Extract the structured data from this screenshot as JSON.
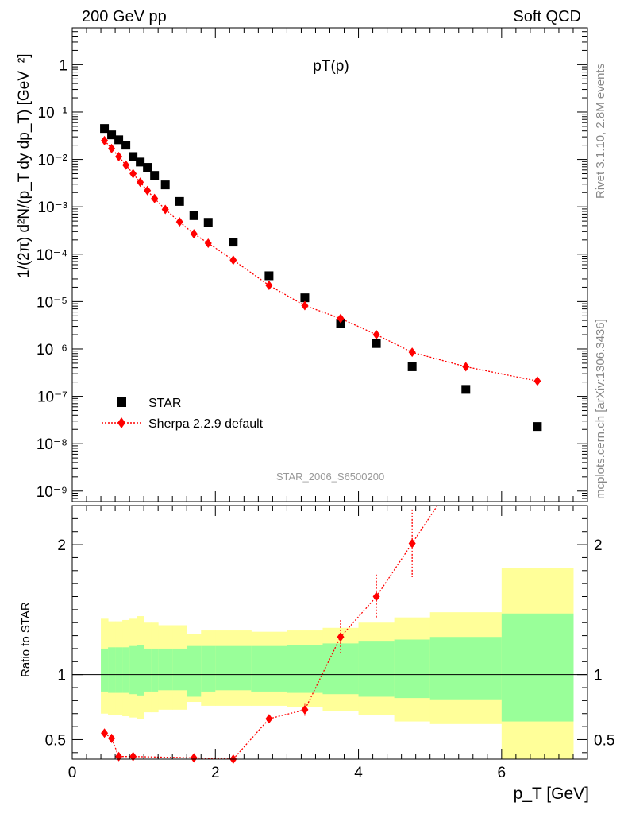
{
  "header": {
    "left_label": "200 GeV pp",
    "right_label": "Soft QCD"
  },
  "side_labels": {
    "rivet": "Rivet 3.1.10,  2.8M events",
    "source": "mcplots.cern.ch [arXiv:1306.3436]"
  },
  "chart_data": [
    {
      "type": "scatter",
      "title": "pT(p)",
      "watermark": "STAR_2006_S6500200",
      "ylabel": "1/(2π) d²N/(p_T dy dp_T) [GeV⁻²]",
      "yscale": "log",
      "ylim": [
        6e-10,
        6
      ],
      "xlim": [
        0,
        7.2
      ],
      "ytick_labels": [
        "10⁻⁹",
        "10⁻⁸",
        "10⁻⁷",
        "10⁻⁶",
        "10⁻⁵",
        "10⁻⁴",
        "10⁻³",
        "10⁻²",
        "10⁻¹",
        "1"
      ],
      "legend_position": "bottom-left",
      "colors": {
        "data": "#000000",
        "mc": "#ff0000"
      },
      "series": [
        {
          "name": "STAR",
          "marker": "square",
          "x": [
            0.45,
            0.55,
            0.65,
            0.75,
            0.85,
            0.95,
            1.05,
            1.15,
            1.3,
            1.5,
            1.7,
            1.9,
            2.25,
            2.75,
            3.25,
            3.75,
            4.25,
            4.75,
            5.5,
            6.5
          ],
          "y": [
            0.045,
            0.033,
            0.026,
            0.02,
            0.0115,
            0.0088,
            0.0068,
            0.0046,
            0.0029,
            0.0013,
            0.00065,
            0.00047,
            0.00018,
            3.5e-05,
            1.2e-05,
            3.5e-06,
            1.3e-06,
            4.2e-07,
            1.4e-07,
            2.3e-08
          ]
        },
        {
          "name": "Sherpa 2.2.9 default",
          "marker": "diamond",
          "line": "dotted",
          "x": [
            0.45,
            0.55,
            0.65,
            0.75,
            0.85,
            0.95,
            1.05,
            1.15,
            1.3,
            1.5,
            1.7,
            1.9,
            2.25,
            2.75,
            3.25,
            3.75,
            4.25,
            4.75,
            5.5,
            6.5
          ],
          "y": [
            0.025,
            0.017,
            0.0115,
            0.0076,
            0.005,
            0.0033,
            0.0022,
            0.0015,
            0.00088,
            0.00048,
            0.00027,
            0.00017,
            7.5e-05,
            2.2e-05,
            8.2e-06,
            4.4e-06,
            2e-06,
            8.5e-07,
            4.2e-07,
            2.1e-07
          ]
        }
      ]
    },
    {
      "type": "line",
      "ylabel": "Ratio to STAR",
      "xlabel": "p_T [GeV]",
      "xlim": [
        0,
        7.2
      ],
      "ylim": [
        0.35,
        2.3
      ],
      "xticks": [
        0,
        2,
        4,
        6
      ],
      "yticks": [
        0.5,
        1,
        2
      ],
      "reference_line": 1,
      "colors": {
        "band_outer": "#ffff99",
        "band_inner": "#99ff99",
        "mc": "#ff0000",
        "reference": "#000000"
      },
      "bands": {
        "edges": [
          0.4,
          0.5,
          0.6,
          0.7,
          0.8,
          0.9,
          1.0,
          1.1,
          1.2,
          1.4,
          1.6,
          1.8,
          2.0,
          2.5,
          3.0,
          3.5,
          4.0,
          4.5,
          5.0,
          6.0,
          7.0
        ],
        "outer_lo": [
          0.7,
          0.69,
          0.69,
          0.68,
          0.67,
          0.66,
          0.71,
          0.71,
          0.73,
          0.73,
          0.79,
          0.76,
          0.76,
          0.76,
          0.75,
          0.72,
          0.69,
          0.64,
          0.62,
          0.34
        ],
        "outer_hi": [
          1.43,
          1.41,
          1.41,
          1.42,
          1.43,
          1.45,
          1.4,
          1.4,
          1.38,
          1.38,
          1.31,
          1.34,
          1.34,
          1.33,
          1.34,
          1.36,
          1.4,
          1.44,
          1.48,
          1.82
        ],
        "inner_lo": [
          0.87,
          0.86,
          0.86,
          0.86,
          0.85,
          0.84,
          0.87,
          0.87,
          0.88,
          0.88,
          0.83,
          0.87,
          0.88,
          0.87,
          0.86,
          0.85,
          0.83,
          0.82,
          0.81,
          0.64
        ],
        "inner_hi": [
          1.2,
          1.21,
          1.21,
          1.21,
          1.22,
          1.23,
          1.2,
          1.2,
          1.2,
          1.2,
          1.22,
          1.22,
          1.22,
          1.22,
          1.23,
          1.24,
          1.26,
          1.27,
          1.29,
          1.47
        ]
      },
      "series": [
        {
          "name": "Sherpa 2.2.9 default",
          "x": [
            0.45,
            0.55,
            0.65,
            0.85,
            1.7,
            2.25,
            2.75,
            3.25,
            3.75,
            4.25,
            4.75
          ],
          "y": [
            0.55,
            0.51,
            0.37,
            0.37,
            0.36,
            0.35,
            0.66,
            0.73,
            1.29,
            1.6,
            2.01
          ],
          "err": [
            0.0,
            0.0,
            0.0,
            0.0,
            0.0,
            0.0,
            0.03,
            0.05,
            0.13,
            0.17,
            0.26
          ]
        }
      ]
    }
  ]
}
